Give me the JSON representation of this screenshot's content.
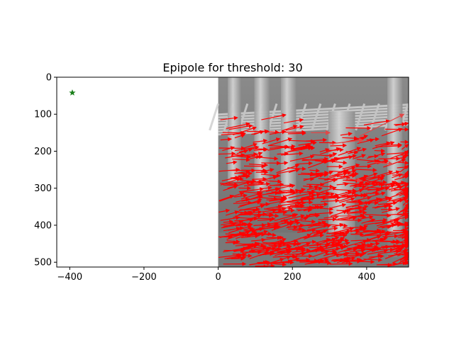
{
  "chart_data": {
    "type": "scatter",
    "title": "Epipole for threshold: 30",
    "xlabel": "",
    "ylabel": "",
    "xlim": [
      -435,
      513
    ],
    "ylim": [
      513,
      0
    ],
    "x_ticks": [
      -400,
      -200,
      0,
      200,
      400
    ],
    "y_ticks": [
      0,
      100,
      200,
      300,
      400,
      500
    ],
    "x_tick_labels": [
      "−400",
      "−200",
      "0",
      "200",
      "400"
    ],
    "y_tick_labels": [
      "0",
      "100",
      "200",
      "300",
      "400",
      "500"
    ],
    "grid": false,
    "background_image": {
      "x_range": [
        0,
        512
      ],
      "y_range": [
        0,
        512
      ],
      "content": "grayscale scene of stone pillars and a grid fence"
    },
    "epipole": {
      "x": -393,
      "y": 42,
      "marker": "star",
      "color": "#1a7f1a"
    },
    "flow_vectors": {
      "color": "#ff0000",
      "count_approx": 700,
      "direction": "rightward, slightly upward",
      "x_range": [
        0,
        512
      ],
      "y_range": [
        110,
        512
      ]
    },
    "highlighted_vectors": [
      {
        "x0": 380,
        "y0": 160,
        "x1": 500,
        "y1": 100
      },
      {
        "x0": 300,
        "y0": 180,
        "x1": 390,
        "y1": 170
      },
      {
        "x0": 420,
        "y0": 230,
        "x1": 470,
        "y1": 235
      },
      {
        "x0": 250,
        "y0": 150,
        "x1": 300,
        "y1": 150
      },
      {
        "x0": 330,
        "y0": 270,
        "x1": 385,
        "y1": 280
      },
      {
        "x0": 310,
        "y0": 375,
        "x1": 360,
        "y1": 375
      }
    ]
  }
}
